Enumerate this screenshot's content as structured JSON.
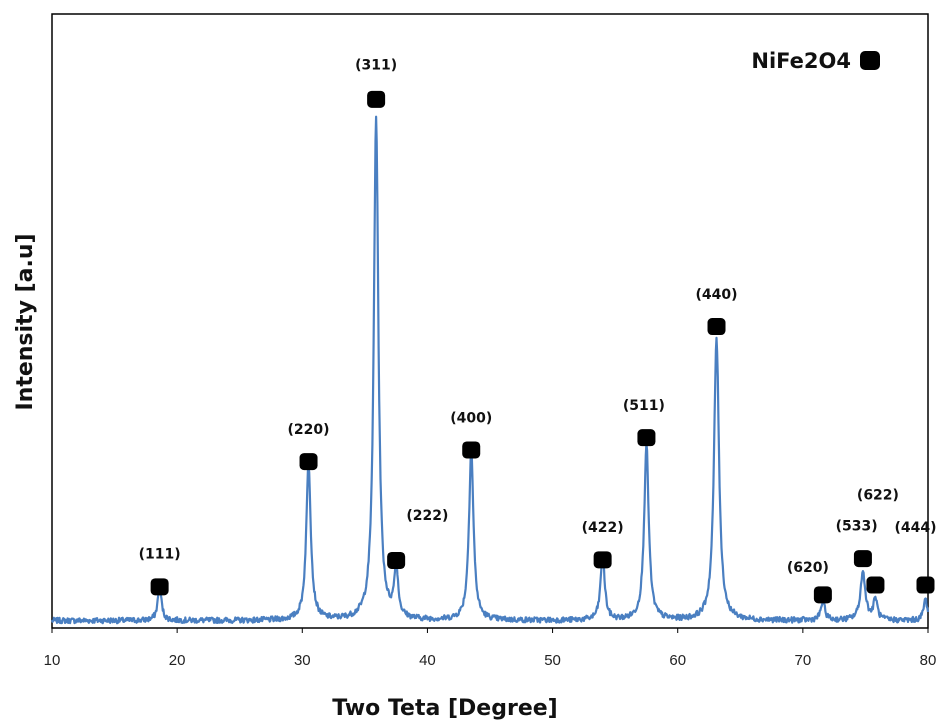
{
  "chart_data": {
    "type": "line",
    "title": "",
    "xlabel": "Two Teta [Degree]",
    "ylabel": "Intensity [a.u]",
    "xlim": [
      10,
      80
    ],
    "ylim": [
      0,
      100
    ],
    "x_ticks": [
      10,
      20,
      30,
      40,
      50,
      60,
      70,
      80
    ],
    "y_ticks_shown": false,
    "grid": false,
    "legend": {
      "label": "NiFe2O4",
      "position": "top-right",
      "marker": "rounded-square"
    },
    "colors": {
      "line": "#4a7fc1",
      "marker": "#000000",
      "frame": "#000000"
    },
    "baseline": 1.2,
    "series": [
      {
        "name": "NiFe2O4",
        "peaks": [
          {
            "x": 18.6,
            "height": 5.5,
            "width": 0.18
          },
          {
            "x": 30.5,
            "height": 25.5,
            "width": 0.22
          },
          {
            "x": 35.9,
            "height": 82.0,
            "width": 0.22
          },
          {
            "x": 37.5,
            "height": 8.5,
            "width": 0.18
          },
          {
            "x": 43.5,
            "height": 27.5,
            "width": 0.22
          },
          {
            "x": 54.0,
            "height": 10.5,
            "width": 0.2
          },
          {
            "x": 57.5,
            "height": 28.5,
            "width": 0.22
          },
          {
            "x": 63.1,
            "height": 46.0,
            "width": 0.24
          },
          {
            "x": 71.6,
            "height": 3.0,
            "width": 0.2
          },
          {
            "x": 74.8,
            "height": 7.8,
            "width": 0.24
          },
          {
            "x": 75.8,
            "height": 3.5,
            "width": 0.18
          },
          {
            "x": 79.8,
            "height": 3.5,
            "width": 0.18
          }
        ]
      }
    ],
    "annotations": [
      {
        "hkl": "(111)",
        "x": 18.6,
        "marker_y": 6.7,
        "label_x": 18.6,
        "label_y": 11.3
      },
      {
        "hkl": "(220)",
        "x": 30.5,
        "marker_y": 27.1,
        "label_x": 30.5,
        "label_y": 31.6
      },
      {
        "hkl": "(311)",
        "x": 35.9,
        "marker_y": 86.1,
        "label_x": 35.9,
        "label_y": 91.0
      },
      {
        "hkl": "(222)",
        "x": 37.5,
        "marker_y": 11.0,
        "label_x": 40.0,
        "label_y": 17.6
      },
      {
        "hkl": "(400)",
        "x": 43.5,
        "marker_y": 29.0,
        "label_x": 43.5,
        "label_y": 33.5
      },
      {
        "hkl": "(422)",
        "x": 54.0,
        "marker_y": 11.1,
        "label_x": 54.0,
        "label_y": 15.6
      },
      {
        "hkl": "(511)",
        "x": 57.5,
        "marker_y": 31.0,
        "label_x": 57.3,
        "label_y": 35.5
      },
      {
        "hkl": "(440)",
        "x": 63.1,
        "marker_y": 49.1,
        "label_x": 63.1,
        "label_y": 53.6
      },
      {
        "hkl": "(620)",
        "x": 71.6,
        "marker_y": 5.4,
        "label_x": 70.4,
        "label_y": 9.1
      },
      {
        "hkl": "(533)",
        "x": 74.8,
        "marker_y": 11.3,
        "label_x": 74.3,
        "label_y": 15.9
      },
      {
        "hkl": "(622)",
        "x": 75.8,
        "marker_y": 7.0,
        "label_x": 76.0,
        "label_y": 20.9
      },
      {
        "hkl": "(444)",
        "x": 79.8,
        "marker_y": 7.0,
        "label_x": 79.0,
        "label_y": 15.6
      }
    ]
  }
}
